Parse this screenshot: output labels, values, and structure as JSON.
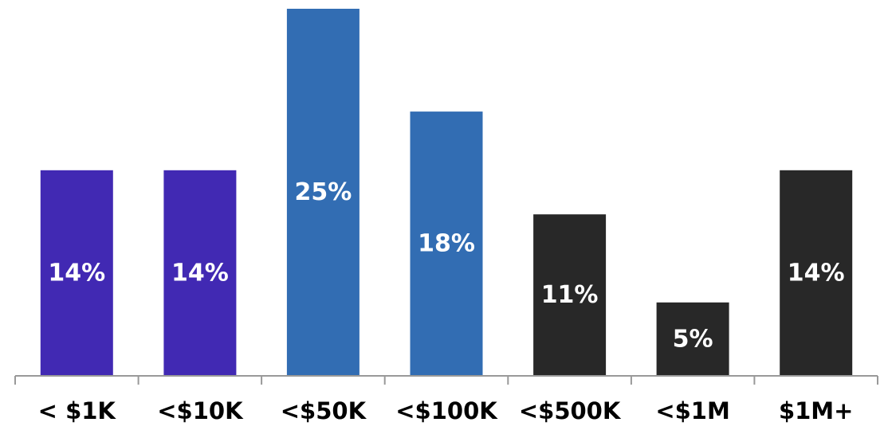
{
  "chart_data": {
    "type": "bar",
    "categories": [
      "< $1K",
      "<$10K",
      "<$50K",
      "<$100K",
      "<$500K",
      "<$1M",
      "$1M+"
    ],
    "values": [
      14,
      14,
      25,
      18,
      11,
      5,
      14
    ],
    "data_labels": [
      "14%",
      "14%",
      "25%",
      "18%",
      "11%",
      "5%",
      "14%"
    ],
    "unit": "%",
    "bar_colors": [
      "#4129b3",
      "#4129b3",
      "#326db3",
      "#326db3",
      "#282828",
      "#282828",
      "#282828"
    ],
    "axis_color": "#999999",
    "ylim": [
      0,
      25
    ],
    "grid": false,
    "title": "",
    "xlabel": "",
    "ylabel": ""
  }
}
